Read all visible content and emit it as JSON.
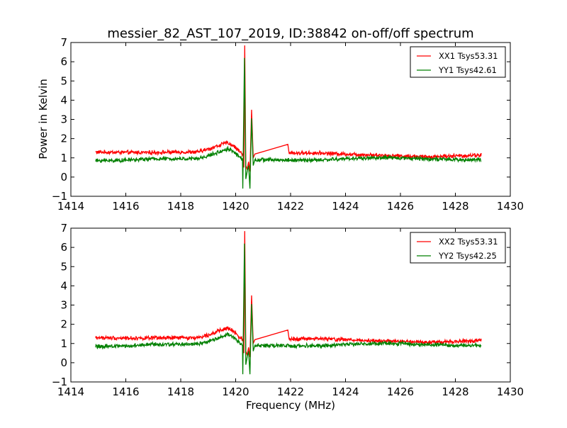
{
  "figure": {
    "title": "messier_82_AST_107_2019, ID:38842 on-off/off spectrum"
  },
  "chart_data": [
    {
      "type": "line",
      "title": "messier_82_AST_107_2019, ID:38842 on-off/off spectrum",
      "xlabel": "",
      "ylabel": "Power in Kelvin",
      "xlim": [
        1414,
        1430
      ],
      "ylim": [
        -1,
        7
      ],
      "xticks": [
        "1414",
        "1416",
        "1418",
        "1420",
        "1422",
        "1424",
        "1426",
        "1428",
        "1430"
      ],
      "yticks": [
        "−1",
        "0",
        "1",
        "2",
        "3",
        "4",
        "5",
        "6",
        "7"
      ],
      "grid": false,
      "legend": "top-right",
      "x_range_data": [
        1414.9,
        1428.95
      ],
      "series": [
        {
          "name": "XX1 Tsys53.31",
          "color": "#ff0000",
          "baseline": [
            [
              1414.9,
              1.3
            ],
            [
              1416,
              1.28
            ],
            [
              1417,
              1.28
            ],
            [
              1418,
              1.3
            ],
            [
              1418.6,
              1.3
            ],
            [
              1419.0,
              1.45
            ],
            [
              1419.4,
              1.65
            ],
            [
              1419.7,
              1.8
            ],
            [
              1419.9,
              1.65
            ],
            [
              1420.1,
              1.4
            ],
            [
              1420.25,
              1.2
            ],
            [
              1420.75,
              1.2
            ],
            [
              1421,
              1.25
            ],
            [
              1422,
              1.25
            ],
            [
              1423,
              1.25
            ],
            [
              1424,
              1.2
            ],
            [
              1425,
              1.15
            ],
            [
              1426,
              1.1
            ],
            [
              1427,
              1.05
            ],
            [
              1428,
              1.1
            ],
            [
              1428.95,
              1.15
            ]
          ],
          "features": [
            [
              1420.3,
              0.5
            ],
            [
              1420.33,
              6.85
            ],
            [
              1420.37,
              0.6
            ],
            [
              1420.42,
              0.4
            ],
            [
              1420.47,
              0.8
            ],
            [
              1420.52,
              0.3
            ],
            [
              1420.58,
              3.5
            ],
            [
              1420.64,
              1.0
            ],
            [
              1420.7,
              1.2
            ],
            [
              1421.9,
              1.7
            ],
            [
              1421.95,
              1.2
            ]
          ]
        },
        {
          "name": "YY1 Tsys42.61",
          "color": "#008000",
          "baseline": [
            [
              1414.9,
              0.85
            ],
            [
              1416,
              0.88
            ],
            [
              1417,
              0.95
            ],
            [
              1418,
              0.95
            ],
            [
              1418.6,
              0.95
            ],
            [
              1419.0,
              1.1
            ],
            [
              1419.4,
              1.3
            ],
            [
              1419.7,
              1.48
            ],
            [
              1419.9,
              1.35
            ],
            [
              1420.1,
              1.1
            ],
            [
              1420.25,
              0.9
            ],
            [
              1420.75,
              0.9
            ],
            [
              1421,
              0.9
            ],
            [
              1422,
              0.88
            ],
            [
              1423,
              0.88
            ],
            [
              1424,
              0.95
            ],
            [
              1425,
              1.0
            ],
            [
              1426,
              1.0
            ],
            [
              1427,
              0.95
            ],
            [
              1428,
              0.9
            ],
            [
              1428.95,
              0.9
            ]
          ],
          "features": [
            [
              1420.26,
              -0.6
            ],
            [
              1420.32,
              6.2
            ],
            [
              1420.37,
              -0.1
            ],
            [
              1420.42,
              0.3
            ],
            [
              1420.47,
              0.6
            ],
            [
              1420.52,
              -0.6
            ],
            [
              1420.58,
              3.05
            ],
            [
              1420.64,
              0.6
            ],
            [
              1420.7,
              0.9
            ]
          ]
        }
      ]
    },
    {
      "type": "line",
      "title": "",
      "xlabel": "Frequency (MHz)",
      "ylabel": "",
      "xlim": [
        1414,
        1430
      ],
      "ylim": [
        -1,
        7
      ],
      "xticks": [
        "1414",
        "1416",
        "1418",
        "1420",
        "1422",
        "1424",
        "1426",
        "1428",
        "1430"
      ],
      "yticks": [
        "−1",
        "0",
        "1",
        "2",
        "3",
        "4",
        "5",
        "6",
        "7"
      ],
      "grid": false,
      "legend": "top-right",
      "x_range_data": [
        1414.9,
        1428.95
      ],
      "series": [
        {
          "name": "XX2 Tsys53.31",
          "color": "#ff0000",
          "baseline": [
            [
              1414.9,
              1.3
            ],
            [
              1416,
              1.28
            ],
            [
              1417,
              1.28
            ],
            [
              1418,
              1.3
            ],
            [
              1418.6,
              1.3
            ],
            [
              1419.0,
              1.45
            ],
            [
              1419.4,
              1.65
            ],
            [
              1419.7,
              1.8
            ],
            [
              1419.9,
              1.65
            ],
            [
              1420.1,
              1.4
            ],
            [
              1420.25,
              1.2
            ],
            [
              1420.75,
              1.2
            ],
            [
              1421,
              1.25
            ],
            [
              1422,
              1.25
            ],
            [
              1423,
              1.25
            ],
            [
              1424,
              1.2
            ],
            [
              1425,
              1.15
            ],
            [
              1426,
              1.1
            ],
            [
              1427,
              1.05
            ],
            [
              1428,
              1.1
            ],
            [
              1428.95,
              1.15
            ]
          ],
          "features": [
            [
              1420.3,
              0.5
            ],
            [
              1420.33,
              6.85
            ],
            [
              1420.37,
              0.6
            ],
            [
              1420.42,
              0.4
            ],
            [
              1420.47,
              0.8
            ],
            [
              1420.52,
              0.3
            ],
            [
              1420.58,
              3.5
            ],
            [
              1420.64,
              1.0
            ],
            [
              1420.7,
              1.2
            ],
            [
              1421.9,
              1.7
            ],
            [
              1421.95,
              1.2
            ]
          ]
        },
        {
          "name": "YY2 Tsys42.25",
          "color": "#008000",
          "baseline": [
            [
              1414.9,
              0.85
            ],
            [
              1416,
              0.88
            ],
            [
              1417,
              0.95
            ],
            [
              1418,
              0.95
            ],
            [
              1418.6,
              0.95
            ],
            [
              1419.0,
              1.1
            ],
            [
              1419.4,
              1.3
            ],
            [
              1419.7,
              1.48
            ],
            [
              1419.9,
              1.35
            ],
            [
              1420.1,
              1.1
            ],
            [
              1420.25,
              0.9
            ],
            [
              1420.75,
              0.9
            ],
            [
              1421,
              0.9
            ],
            [
              1422,
              0.88
            ],
            [
              1423,
              0.88
            ],
            [
              1424,
              0.95
            ],
            [
              1425,
              1.0
            ],
            [
              1426,
              1.0
            ],
            [
              1427,
              0.95
            ],
            [
              1428,
              0.9
            ],
            [
              1428.95,
              0.9
            ]
          ],
          "features": [
            [
              1420.26,
              -0.6
            ],
            [
              1420.32,
              6.2
            ],
            [
              1420.37,
              -0.1
            ],
            [
              1420.42,
              0.3
            ],
            [
              1420.47,
              0.6
            ],
            [
              1420.52,
              -0.6
            ],
            [
              1420.58,
              3.05
            ],
            [
              1420.64,
              0.6
            ],
            [
              1420.7,
              0.9
            ]
          ]
        }
      ]
    }
  ]
}
